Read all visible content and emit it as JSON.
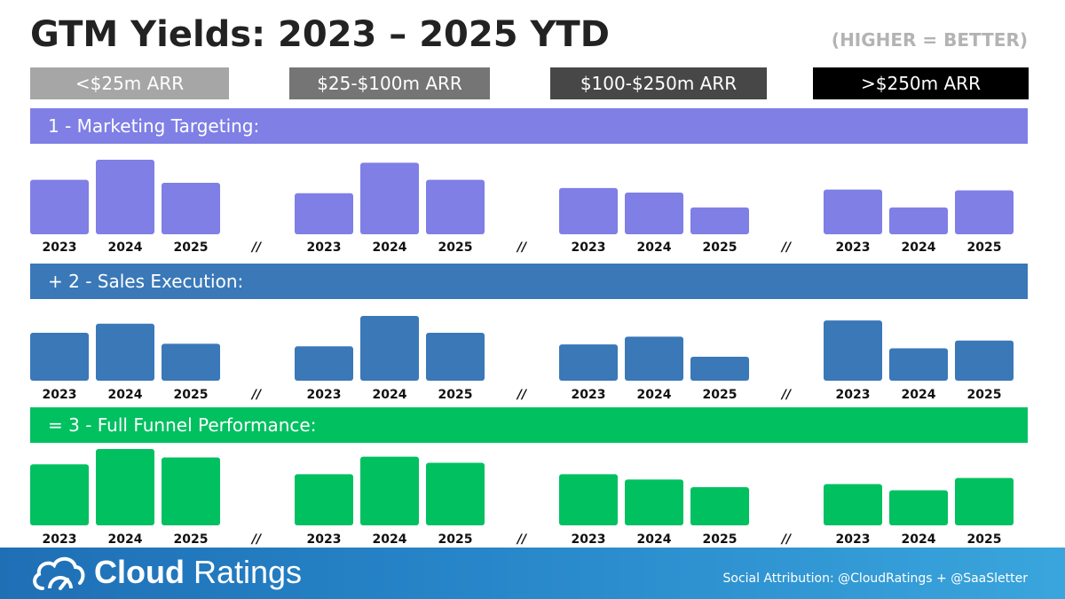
{
  "header": {
    "title": "GTM Yields: 2023 – 2025 YTD",
    "subtitle": "(HIGHER = BETTER)"
  },
  "segments": [
    {
      "label": "<$25m ARR",
      "color": "#a6a6a6"
    },
    {
      "label": "$25-$100m ARR",
      "color": "#757575"
    },
    {
      "label": "$100-$250m ARR",
      "color": "#474747"
    },
    {
      "label": ">$250m ARR",
      "color": "#000000"
    }
  ],
  "separator": "//",
  "chart_data": [
    {
      "type": "bar",
      "title": "1 - Marketing Targeting:",
      "color": "#7f7fe6",
      "categories": [
        "2023",
        "2024",
        "2025"
      ],
      "ylim": [
        0,
        100
      ],
      "series": [
        {
          "name": "<$25m ARR",
          "values": [
            73,
            100,
            69
          ]
        },
        {
          "name": "$25-$100m ARR",
          "values": [
            55,
            96,
            73
          ]
        },
        {
          "name": "$100-$250m ARR",
          "values": [
            62,
            56,
            36
          ]
        },
        {
          "name": ">$250m ARR",
          "values": [
            60,
            36,
            59
          ]
        }
      ]
    },
    {
      "type": "bar",
      "title": "+ 2 - Sales Execution:",
      "color": "#3a78b8",
      "categories": [
        "2023",
        "2024",
        "2025"
      ],
      "ylim": [
        0,
        100
      ],
      "series": [
        {
          "name": "<$25m ARR",
          "values": [
            74,
            88,
            57
          ]
        },
        {
          "name": "$25-$100m ARR",
          "values": [
            53,
            100,
            74
          ]
        },
        {
          "name": "$100-$250m ARR",
          "values": [
            56,
            68,
            37
          ]
        },
        {
          "name": ">$250m ARR",
          "values": [
            93,
            50,
            62
          ]
        }
      ]
    },
    {
      "type": "bar",
      "title": "= 3 - Full Funnel Performance:",
      "color": "#00c060",
      "categories": [
        "2023",
        "2024",
        "2025"
      ],
      "ylim": [
        0,
        100
      ],
      "series": [
        {
          "name": "<$25m ARR",
          "values": [
            80,
            100,
            89
          ]
        },
        {
          "name": "$25-$100m ARR",
          "values": [
            67,
            90,
            82
          ]
        },
        {
          "name": "$100-$250m ARR",
          "values": [
            67,
            60,
            50
          ]
        },
        {
          "name": ">$250m ARR",
          "values": [
            54,
            46,
            62
          ]
        }
      ]
    }
  ],
  "footer": {
    "logo_bold": "Cloud",
    "logo_light": " Ratings",
    "attribution": "Social Attribution: @CloudRatings + @SaaSletter"
  }
}
